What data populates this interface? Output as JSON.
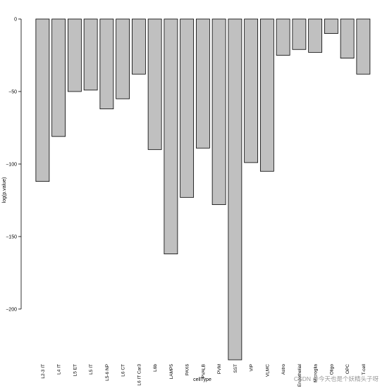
{
  "chart_data": {
    "type": "bar",
    "xlabel": "cellType",
    "ylabel": "log(p.value)",
    "ylim": [
      -235,
      0
    ],
    "yticks": [
      0,
      -50,
      -100,
      -150,
      -200
    ],
    "bar_color": "#c0c0c0",
    "bar_stroke": "#000000",
    "categories": [
      "L2-3 IT",
      "L4 IT",
      "L5 ET",
      "L5 IT",
      "L5-6 NP",
      "L6 CT",
      "L6 IT Car3",
      "L6b",
      "LAMP5",
      "PAX6",
      "PVALB",
      "PVM",
      "SST",
      "VIP",
      "VLMC",
      "Astro",
      "Endothelial",
      "Microglia",
      "Oligo",
      "OPC",
      "T-cell"
    ],
    "values": [
      -112,
      -81,
      -50,
      -49,
      -62,
      -55,
      -38,
      -90,
      -162,
      -123,
      -89,
      -128,
      -235,
      -99,
      -105,
      -25,
      -21,
      -23,
      -10,
      -27,
      -38
    ]
  },
  "watermark": "CSDN @今天也是个妖精头子呀"
}
